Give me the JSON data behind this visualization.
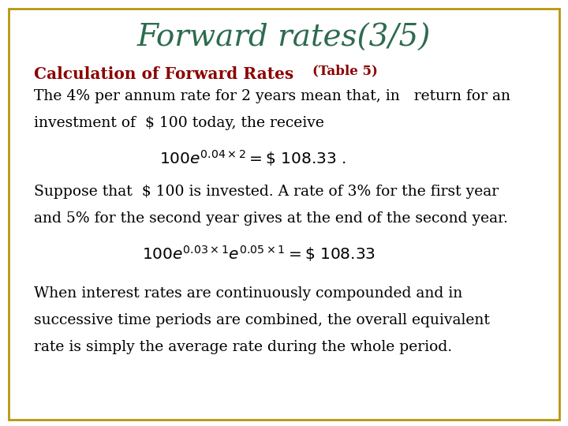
{
  "title": "Forward rates(3/5)",
  "title_color": "#2E6B4F",
  "title_fontsize": 28,
  "background_color": "#FFFFFF",
  "border_color": "#B8960C",
  "subtitle": "Calculation of Forward Rates",
  "subtitle_table": "(Table 5)",
  "subtitle_color": "#8B0000",
  "body_color": "#000000",
  "body_fontsize": 13.5,
  "line1": "The 4% per annum rate for 2 years mean that, in   return for an",
  "line2": "investment of  $ 100 today, the receive",
  "line3": "Suppose that  $ 100 is invested. A rate of 3% for the first year",
  "line4": "and 5% for the second year gives at the end of the second year.",
  "line5": "When interest rates are continuously compounded and in",
  "line6": "successive time periods are combined, the overall equivalent",
  "line7": "rate is simply the average rate during the whole period."
}
